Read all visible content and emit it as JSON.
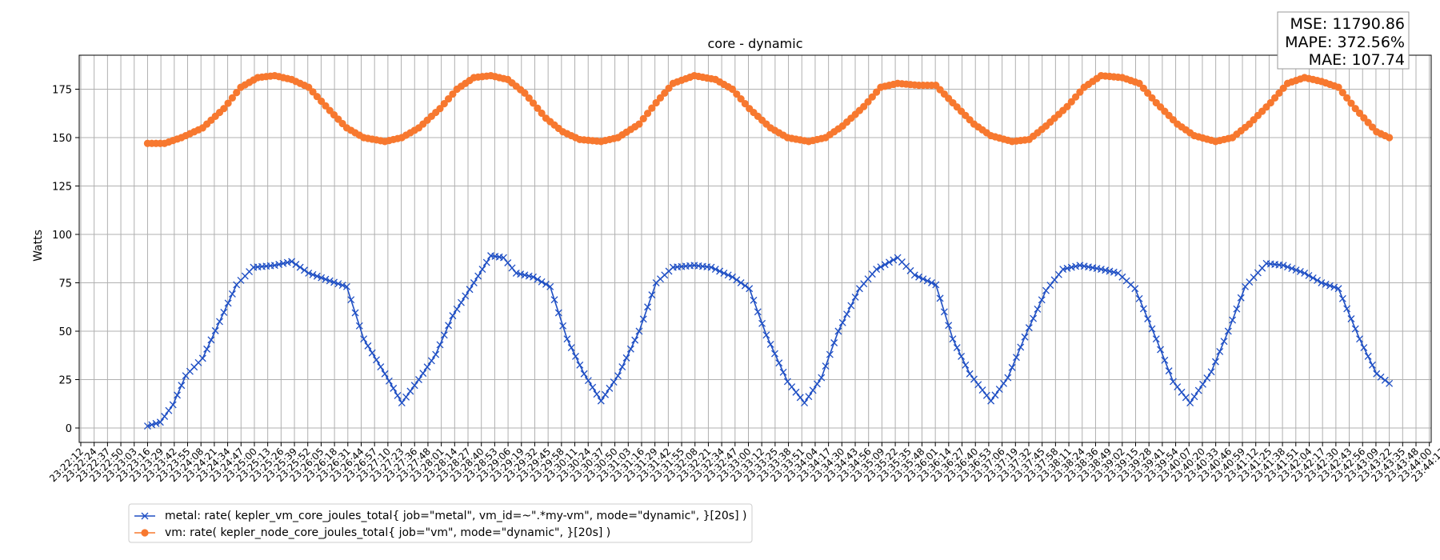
{
  "chart_data": {
    "type": "line",
    "title": "core - dynamic",
    "xlabel": "",
    "ylabel": "Watts",
    "ylim": [
      -8,
      192
    ],
    "yticks": [
      0,
      25,
      50,
      75,
      100,
      125,
      150,
      175
    ],
    "grid": true,
    "legend_position": "bottom-left",
    "stats": [
      "MSE: 11790.86",
      "MAPE: 372.56%",
      "MAE: 107.74"
    ],
    "x_ticks": [
      "23:22:12",
      "23:22:24",
      "23:22:37",
      "23:22:50",
      "23:23:03",
      "23:23:16",
      "23:23:29",
      "23:23:42",
      "23:23:55",
      "23:24:08",
      "23:24:21",
      "23:24:34",
      "23:24:47",
      "23:25:00",
      "23:25:13",
      "23:25:26",
      "23:25:39",
      "23:25:52",
      "23:26:05",
      "23:26:18",
      "23:26:31",
      "23:26:44",
      "23:26:57",
      "23:27:10",
      "23:27:23",
      "23:27:36",
      "23:27:48",
      "23:28:01",
      "23:28:14",
      "23:28:27",
      "23:28:40",
      "23:28:53",
      "23:29:06",
      "23:29:19",
      "23:29:32",
      "23:29:45",
      "23:29:58",
      "23:30:11",
      "23:30:24",
      "23:30:37",
      "23:30:50",
      "23:31:03",
      "23:31:16",
      "23:31:29",
      "23:31:42",
      "23:31:55",
      "23:32:08",
      "23:32:21",
      "23:32:34",
      "23:32:47",
      "23:33:00",
      "23:33:12",
      "23:33:25",
      "23:33:38",
      "23:33:51",
      "23:34:04",
      "23:34:17",
      "23:34:30",
      "23:34:43",
      "23:34:56",
      "23:35:09",
      "23:35:22",
      "23:35:35",
      "23:35:48",
      "23:36:01",
      "23:36:14",
      "23:36:27",
      "23:36:40",
      "23:36:53",
      "23:37:06",
      "23:37:19",
      "23:37:32",
      "23:37:45",
      "23:37:58",
      "23:38:11",
      "23:38:24",
      "23:38:36",
      "23:38:49",
      "23:39:02",
      "23:39:15",
      "23:39:28",
      "23:39:41",
      "23:39:54",
      "23:40:07",
      "23:40:20",
      "23:40:33",
      "23:40:46",
      "23:40:59",
      "23:41:12",
      "23:41:25",
      "23:41:38",
      "23:41:51",
      "23:42:04",
      "23:42:17",
      "23:42:30",
      "23:42:43",
      "23:42:56",
      "23:43:09",
      "23:43:22",
      "23:43:35",
      "23:43:48",
      "23:44:00",
      "23:44:13"
    ],
    "x_data_start": "23:23:16",
    "x_data_end": "23:43:22",
    "series": [
      {
        "name": "metal: rate( kepler_vm_core_joules_total{ job=\"metal\", vm_id=~\".*my-vm\", mode=\"dynamic\", }[20s] )",
        "color": "#1f4fc4",
        "marker": "x",
        "anchors": [
          [
            0,
            1
          ],
          [
            3,
            3
          ],
          [
            6,
            12
          ],
          [
            9,
            27
          ],
          [
            13,
            36
          ],
          [
            17,
            55
          ],
          [
            21,
            74
          ],
          [
            25,
            83
          ],
          [
            30,
            84
          ],
          [
            34,
            86
          ],
          [
            38,
            80
          ],
          [
            43,
            76
          ],
          [
            47,
            73
          ],
          [
            51,
            46
          ],
          [
            56,
            28
          ],
          [
            60,
            13
          ],
          [
            64,
            25
          ],
          [
            68,
            38
          ],
          [
            72,
            58
          ],
          [
            77,
            75
          ],
          [
            81,
            89
          ],
          [
            84,
            88
          ],
          [
            87,
            80
          ],
          [
            91,
            78
          ],
          [
            95,
            73
          ],
          [
            99,
            46
          ],
          [
            103,
            28
          ],
          [
            107,
            14
          ],
          [
            111,
            27
          ],
          [
            116,
            50
          ],
          [
            120,
            75
          ],
          [
            124,
            83
          ],
          [
            129,
            84
          ],
          [
            133,
            83
          ],
          [
            138,
            78
          ],
          [
            142,
            72
          ],
          [
            146,
            48
          ],
          [
            151,
            24
          ],
          [
            155,
            13
          ],
          [
            159,
            26
          ],
          [
            163,
            50
          ],
          [
            168,
            72
          ],
          [
            172,
            82
          ],
          [
            177,
            88
          ],
          [
            181,
            79
          ],
          [
            186,
            74
          ],
          [
            190,
            46
          ],
          [
            194,
            28
          ],
          [
            199,
            14
          ],
          [
            203,
            26
          ],
          [
            207,
            47
          ],
          [
            212,
            71
          ],
          [
            216,
            82
          ],
          [
            220,
            84
          ],
          [
            225,
            82
          ],
          [
            229,
            80
          ],
          [
            233,
            72
          ],
          [
            238,
            46
          ],
          [
            242,
            24
          ],
          [
            246,
            13
          ],
          [
            251,
            29
          ],
          [
            255,
            50
          ],
          [
            259,
            73
          ],
          [
            264,
            85
          ],
          [
            268,
            84
          ],
          [
            273,
            80
          ],
          [
            277,
            75
          ],
          [
            281,
            72
          ],
          [
            286,
            46
          ],
          [
            290,
            28
          ],
          [
            293,
            23
          ]
        ]
      },
      {
        "name": "vm: rate( kepler_node_core_joules_total{ job=\"vm\", mode=\"dynamic\", }[20s] )",
        "color": "#f7782f",
        "marker": "o",
        "anchors": [
          [
            0,
            147
          ],
          [
            4,
            147
          ],
          [
            8,
            150
          ],
          [
            13,
            155
          ],
          [
            18,
            165
          ],
          [
            22,
            176
          ],
          [
            26,
            181
          ],
          [
            30,
            182
          ],
          [
            34,
            180
          ],
          [
            38,
            176
          ],
          [
            43,
            164
          ],
          [
            47,
            155
          ],
          [
            51,
            150
          ],
          [
            56,
            148
          ],
          [
            60,
            150
          ],
          [
            64,
            155
          ],
          [
            69,
            165
          ],
          [
            73,
            175
          ],
          [
            77,
            181
          ],
          [
            81,
            182
          ],
          [
            85,
            180
          ],
          [
            89,
            173
          ],
          [
            94,
            160
          ],
          [
            98,
            153
          ],
          [
            102,
            149
          ],
          [
            107,
            148
          ],
          [
            111,
            150
          ],
          [
            116,
            157
          ],
          [
            120,
            168
          ],
          [
            124,
            178
          ],
          [
            129,
            182
          ],
          [
            134,
            180
          ],
          [
            138,
            175
          ],
          [
            142,
            165
          ],
          [
            147,
            155
          ],
          [
            151,
            150
          ],
          [
            156,
            148
          ],
          [
            160,
            150
          ],
          [
            164,
            156
          ],
          [
            169,
            166
          ],
          [
            173,
            176
          ],
          [
            177,
            178
          ],
          [
            182,
            177
          ],
          [
            186,
            177
          ],
          [
            190,
            168
          ],
          [
            195,
            157
          ],
          [
            199,
            151
          ],
          [
            204,
            148
          ],
          [
            208,
            149
          ],
          [
            212,
            156
          ],
          [
            217,
            166
          ],
          [
            221,
            176
          ],
          [
            225,
            182
          ],
          [
            230,
            181
          ],
          [
            234,
            178
          ],
          [
            238,
            168
          ],
          [
            243,
            157
          ],
          [
            247,
            151
          ],
          [
            252,
            148
          ],
          [
            256,
            150
          ],
          [
            260,
            157
          ],
          [
            265,
            168
          ],
          [
            269,
            178
          ],
          [
            273,
            181
          ],
          [
            277,
            179
          ],
          [
            281,
            176
          ],
          [
            285,
            165
          ],
          [
            290,
            153
          ],
          [
            293,
            150
          ]
        ]
      }
    ]
  }
}
